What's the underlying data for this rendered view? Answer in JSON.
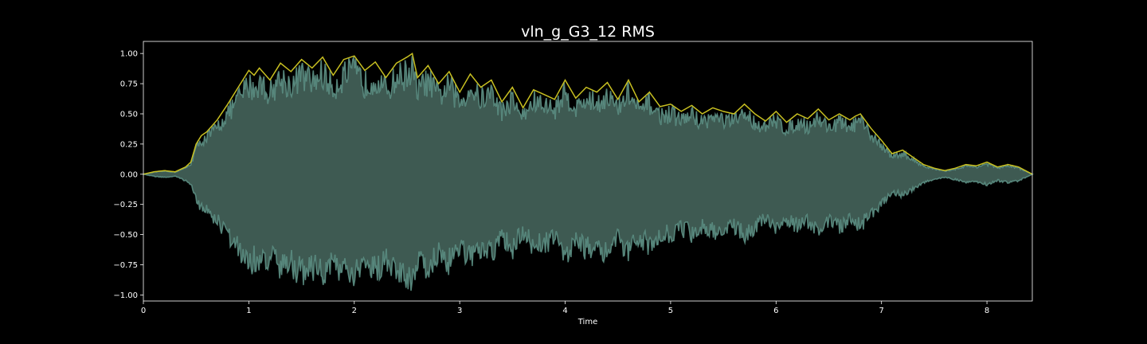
{
  "chart_data": {
    "type": "area",
    "title": "vln_g_G3_12 RMS",
    "xlabel": "Time",
    "ylabel": "",
    "xlim": [
      0,
      8.43
    ],
    "ylim": [
      -1.05,
      1.1
    ],
    "x_ticks": [
      0,
      1,
      2,
      3,
      4,
      5,
      6,
      7,
      8
    ],
    "x_tick_labels": [
      "0",
      "1",
      "2",
      "3",
      "4",
      "5",
      "6",
      "7",
      "8"
    ],
    "y_ticks": [
      1.0,
      0.75,
      0.5,
      0.25,
      0.0,
      -0.25,
      -0.5,
      -0.75,
      -1.0
    ],
    "y_tick_labels": [
      "1.00",
      "0.75",
      "0.50",
      "0.25",
      "0.00",
      "−0.25",
      "−0.50",
      "−0.75",
      "−1.00"
    ],
    "grid": false,
    "colors": {
      "background": "#000000",
      "frame": "#ffffff",
      "waveform": "#3e5a52",
      "waveform_edge": "#5f9488",
      "rms": "#c8c021"
    },
    "series": [
      {
        "name": "RMS",
        "x": [
          0,
          0.1,
          0.2,
          0.3,
          0.4,
          0.45,
          0.5,
          0.55,
          0.6,
          0.7,
          0.8,
          0.9,
          1.0,
          1.05,
          1.1,
          1.2,
          1.3,
          1.4,
          1.5,
          1.6,
          1.7,
          1.8,
          1.9,
          2.0,
          2.1,
          2.2,
          2.3,
          2.4,
          2.5,
          2.55,
          2.6,
          2.7,
          2.8,
          2.9,
          3.0,
          3.1,
          3.2,
          3.3,
          3.4,
          3.5,
          3.6,
          3.7,
          3.8,
          3.9,
          4.0,
          4.1,
          4.2,
          4.3,
          4.4,
          4.5,
          4.6,
          4.7,
          4.8,
          4.9,
          5.0,
          5.1,
          5.2,
          5.3,
          5.4,
          5.5,
          5.6,
          5.7,
          5.8,
          5.9,
          6.0,
          6.1,
          6.2,
          6.3,
          6.4,
          6.5,
          6.6,
          6.7,
          6.75,
          6.8,
          6.9,
          7.0,
          7.1,
          7.2,
          7.3,
          7.4,
          7.5,
          7.6,
          7.7,
          7.8,
          7.9,
          8.0,
          8.1,
          8.2,
          8.3,
          8.43
        ],
        "values": [
          0.0,
          0.02,
          0.03,
          0.02,
          0.06,
          0.1,
          0.25,
          0.32,
          0.35,
          0.45,
          0.58,
          0.72,
          0.86,
          0.82,
          0.88,
          0.78,
          0.92,
          0.85,
          0.95,
          0.88,
          0.97,
          0.82,
          0.95,
          0.98,
          0.86,
          0.93,
          0.8,
          0.92,
          0.97,
          1.0,
          0.8,
          0.9,
          0.75,
          0.85,
          0.68,
          0.83,
          0.72,
          0.78,
          0.6,
          0.72,
          0.55,
          0.7,
          0.66,
          0.62,
          0.78,
          0.63,
          0.72,
          0.68,
          0.76,
          0.62,
          0.78,
          0.6,
          0.68,
          0.56,
          0.58,
          0.52,
          0.57,
          0.5,
          0.55,
          0.52,
          0.5,
          0.58,
          0.5,
          0.44,
          0.52,
          0.43,
          0.5,
          0.46,
          0.54,
          0.45,
          0.5,
          0.45,
          0.48,
          0.5,
          0.38,
          0.28,
          0.17,
          0.2,
          0.14,
          0.08,
          0.05,
          0.03,
          0.05,
          0.08,
          0.07,
          0.1,
          0.06,
          0.08,
          0.06,
          0.0
        ]
      }
    ]
  }
}
